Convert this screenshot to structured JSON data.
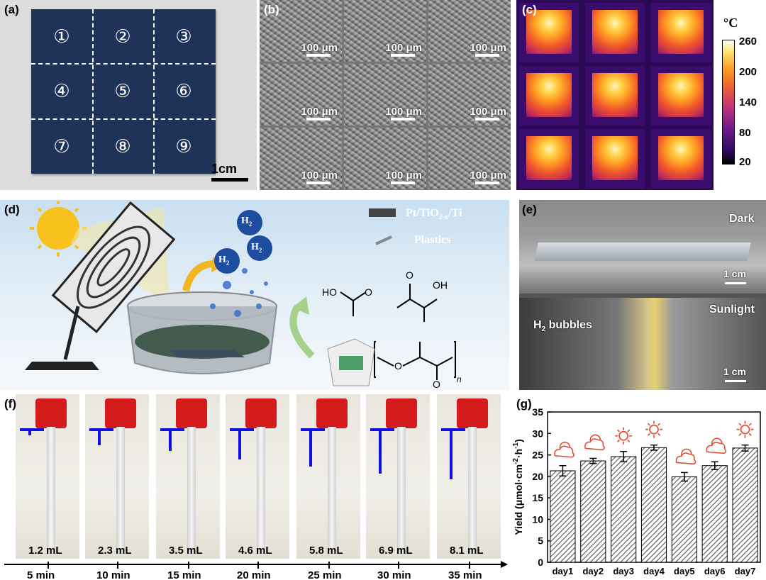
{
  "panels": {
    "a": {
      "label": "(a)",
      "cells": [
        "①",
        "②",
        "③",
        "④",
        "⑤",
        "⑥",
        "⑦",
        "⑧",
        "⑨"
      ],
      "scale": "1cm"
    },
    "b": {
      "label": "(b)",
      "scale": "100 μm"
    },
    "c": {
      "label": "(c)",
      "unit": "°C",
      "ticks": [
        "260",
        "200",
        "140",
        "80",
        "20"
      ]
    },
    "d": {
      "label": "(d)",
      "h2": "H",
      "h2_sub": "2",
      "legend_material": "Pt/TiO",
      "legend_material_sub": "2-x",
      "legend_material_tail": "/Ti",
      "legend_plastics": "Plastics",
      "ho_left": "HO",
      "o_left": "O",
      "oh_right": "OH",
      "o_right": "O",
      "o_poly": "O",
      "o_poly2": "O",
      "n_sub": "n"
    },
    "e": {
      "label": "(e)",
      "dark": "Dark",
      "sunlight": "Sunlight",
      "bubbles": "H",
      "bubbles_sub": "2",
      "bubbles_tail": " bubbles",
      "scale": "1 cm"
    },
    "f": {
      "label": "(f)",
      "volumes": [
        "1.2 mL",
        "2.3 mL",
        "3.5 mL",
        "4.6 mL",
        "5.8 mL",
        "6.9 mL",
        "8.1 mL"
      ],
      "times": [
        "5 min",
        "10 min",
        "15 min",
        "20 min",
        "25 min",
        "30 min",
        "35 min"
      ]
    },
    "g": {
      "label": "(g)"
    }
  },
  "chart_data": {
    "type": "bar",
    "categories": [
      "day1",
      "day2",
      "day3",
      "day4",
      "day5",
      "day6",
      "day7"
    ],
    "values": [
      21.3,
      23.6,
      24.6,
      26.7,
      19.9,
      22.5,
      26.6
    ],
    "errors": [
      1.2,
      0.6,
      1.2,
      0.6,
      1.0,
      0.9,
      0.7
    ],
    "weather_icons": [
      "cloud-sun-icon",
      "cloud-sun-icon",
      "sun-icon",
      "sun-icon",
      "cloud-sun-icon",
      "cloud-sun-icon",
      "sun-icon"
    ],
    "title": "",
    "xlabel": "",
    "ylabel": "Yield (μmol·cm",
    "ylabel_sup": "-2",
    "ylabel_mid": "·h",
    "ylabel_sup2": "-1",
    "ylabel_tail": ")",
    "ylim": [
      0,
      35
    ],
    "yticks": [
      "0",
      "5",
      "10",
      "15",
      "20",
      "25",
      "30",
      "35"
    ],
    "grid": false,
    "colors": {
      "bar_fill": "#ffffff",
      "hatch": "#555555",
      "icon": "#e0462a"
    }
  },
  "colors": {
    "sheet": "#1f3257",
    "pointer": "#1010e0",
    "cap": "#d41a1a"
  }
}
